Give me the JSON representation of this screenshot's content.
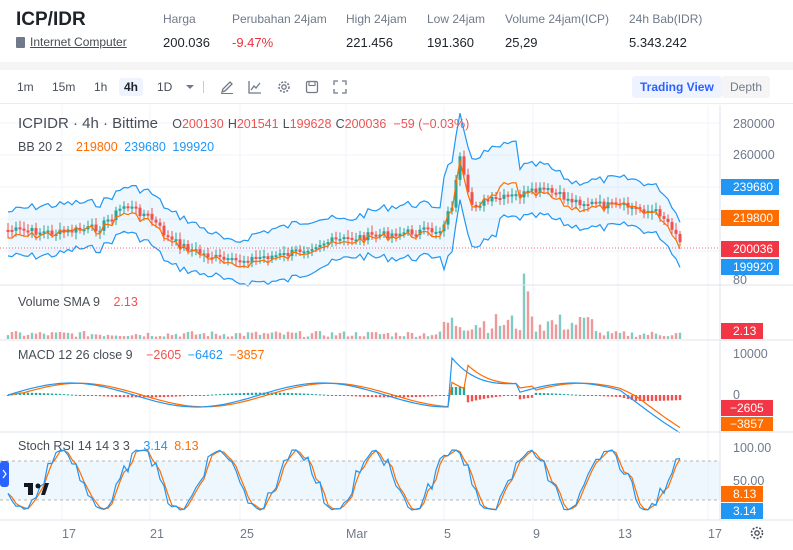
{
  "header": {
    "pair": "ICP/IDR",
    "coin_name": "Internet Computer",
    "stats": [
      {
        "label": "Harga",
        "value": "200.036",
        "negative": false
      },
      {
        "label": "Perubahan 24jam",
        "value": "-9.47%",
        "negative": true
      },
      {
        "label": "High 24jam",
        "value": "221.456",
        "negative": false
      },
      {
        "label": "Low 24jam",
        "value": "191.360",
        "negative": false
      },
      {
        "label": "Volume 24jam(ICP)",
        "value": "25,29",
        "negative": false
      },
      {
        "label": "24h Bab(IDR)",
        "value": "5.343.242",
        "negative": false
      }
    ]
  },
  "toolbar": {
    "timeframes": [
      "1m",
      "15m",
      "1h",
      "4h",
      "1D"
    ],
    "active_timeframe": "4h",
    "tools": [
      "chevron-down-icon",
      "pencil-icon",
      "indicator-icon",
      "gear-icon",
      "save-icon",
      "fullscreen-icon"
    ],
    "views": [
      "Trading View",
      "Depth"
    ],
    "active_view": "Trading View"
  },
  "chart": {
    "legend": {
      "symbol": "ICPIDR · 4h · Bittime",
      "o_label": "O",
      "o": "200130",
      "h_label": "H",
      "h": "201541",
      "l_label": "L",
      "l": "199628",
      "c_label": "C",
      "c": "200036",
      "change": "−59 (−0.03%)"
    },
    "bb_label": "BB 20 2",
    "bb_values": [
      "219800",
      "239680",
      "199920"
    ],
    "volume_label": "Volume SMA 9",
    "volume_value": "2.13",
    "macd_label": "MACD 12 26 close 9",
    "macd_values": [
      "−2605",
      "−6462",
      "−3857"
    ],
    "stoch_label": "Stoch RSI 14 14 3 3",
    "stoch_values": [
      "3.14",
      "8.13"
    ],
    "price_axis": [
      "280000",
      "260000"
    ],
    "price_tags": [
      {
        "text": "239680",
        "color": "#2196f3"
      },
      {
        "text": "219800",
        "color": "#ff6d00"
      },
      {
        "text": "200036",
        "color": "#f23645"
      },
      {
        "text": "199920",
        "color": "#2196f3"
      }
    ],
    "volume_axis": [
      "80"
    ],
    "volume_tag": {
      "text": "2.13",
      "color": "#f23645"
    },
    "macd_axis": [
      "10000",
      "0"
    ],
    "macd_tags": [
      {
        "text": "−2605",
        "color": "#f23645"
      },
      {
        "text": "−3857",
        "color": "#ff6d00"
      }
    ],
    "stoch_axis": [
      "100.00",
      "50.00"
    ],
    "stoch_tags": [
      {
        "text": "8.13",
        "color": "#ff6d00"
      },
      {
        "text": "3.14",
        "color": "#2196f3"
      }
    ],
    "time_axis": [
      "17",
      "21",
      "25",
      "Mar",
      "5",
      "9",
      "13",
      "17"
    ],
    "colors": {
      "up": "#26a69a",
      "down": "#ef5350",
      "bb_basis": "#ff6d00",
      "bb_band": "#2196f3",
      "macd": "#2196f3",
      "signal": "#ff6d00",
      "stoch_k": "#2196f3",
      "stoch_d": "#ff6d00"
    }
  }
}
